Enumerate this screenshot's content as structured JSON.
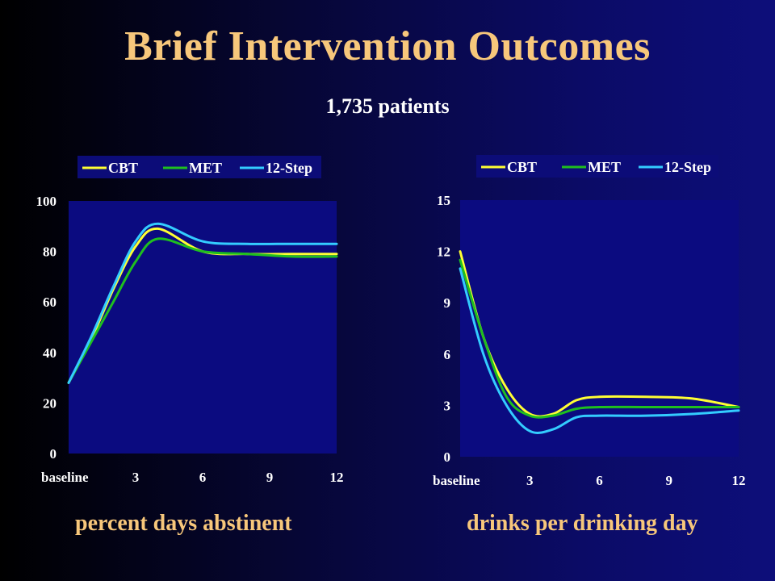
{
  "slide": {
    "title": "Brief Intervention Outcomes",
    "subtitle": "1,735 patients"
  },
  "colors": {
    "CBT": "#ffff33",
    "MET": "#1fbf1f",
    "12-Step": "#33ccff",
    "title": "#f7c77b",
    "plot_background": "#0b0b80"
  },
  "chart_data": [
    {
      "type": "line",
      "caption": "percent days abstinent",
      "x_tick_labels": [
        "baseline",
        "3",
        "6",
        "9",
        "12"
      ],
      "y_ticks": [
        0,
        20,
        40,
        60,
        80,
        100
      ],
      "ylim": [
        0,
        100
      ],
      "xlim": [
        0,
        12
      ],
      "legend": {
        "position": "top"
      },
      "series": [
        {
          "name": "CBT",
          "x": [
            0,
            1,
            2,
            3,
            4,
            6,
            8,
            10,
            12
          ],
          "values": [
            28,
            45,
            65,
            82,
            89,
            80,
            79,
            79,
            79
          ]
        },
        {
          "name": "MET",
          "x": [
            0,
            1,
            2,
            3,
            4,
            6,
            8,
            10,
            12
          ],
          "values": [
            28,
            44,
            60,
            76,
            85,
            80,
            79,
            78,
            78
          ]
        },
        {
          "name": "12-Step",
          "x": [
            0,
            1,
            2,
            3,
            4,
            6,
            8,
            10,
            12
          ],
          "values": [
            28,
            46,
            66,
            84,
            91,
            84,
            83,
            83,
            83
          ]
        }
      ]
    },
    {
      "type": "line",
      "caption": "drinks per drinking day",
      "x_tick_labels": [
        "baseline",
        "3",
        "6",
        "9",
        "12"
      ],
      "y_ticks": [
        0,
        3,
        6,
        9,
        12,
        15
      ],
      "ylim": [
        0,
        15
      ],
      "xlim": [
        0,
        12
      ],
      "legend": {
        "position": "top"
      },
      "series": [
        {
          "name": "CBT",
          "x": [
            0,
            1,
            2,
            3,
            4,
            5,
            6,
            8,
            10,
            12
          ],
          "values": [
            12,
            7,
            4,
            2.5,
            2.5,
            3.3,
            3.5,
            3.5,
            3.4,
            2.9
          ]
        },
        {
          "name": "MET",
          "x": [
            0,
            1,
            2,
            3,
            4,
            5,
            6,
            8,
            10,
            12
          ],
          "values": [
            11.5,
            7,
            3.5,
            2.4,
            2.4,
            2.8,
            2.9,
            2.9,
            2.9,
            2.9
          ]
        },
        {
          "name": "12-Step",
          "x": [
            0,
            1,
            2,
            3,
            4,
            5,
            6,
            8,
            10,
            12
          ],
          "values": [
            11,
            6,
            3,
            1.5,
            1.6,
            2.3,
            2.4,
            2.4,
            2.5,
            2.7
          ]
        }
      ]
    }
  ]
}
